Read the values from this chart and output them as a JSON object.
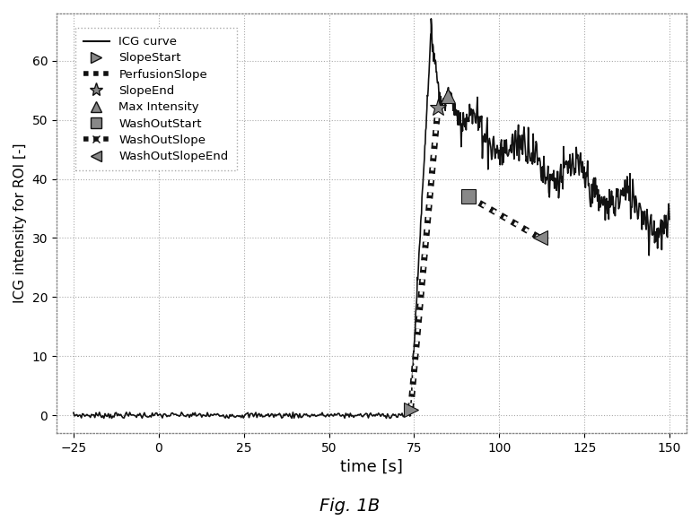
{
  "title": "Fig. 1B",
  "xlabel": "time [s]",
  "ylabel": "ICG intensity for ROI [-]",
  "xlim": [
    -30,
    155
  ],
  "ylim": [
    -3,
    68
  ],
  "xticks": [
    -25,
    0,
    25,
    50,
    75,
    100,
    125,
    150
  ],
  "yticks": [
    0,
    10,
    20,
    30,
    40,
    50,
    60
  ],
  "bg_color": "#ffffff",
  "line_color": "#111111",
  "slope_start_x": 74,
  "slope_start_y": 1,
  "slope_end_x": 82,
  "slope_end_y": 52,
  "max_intensity_x": 85,
  "max_intensity_y": 54,
  "washout_start_x": 91,
  "washout_start_y": 37,
  "washout_slope_end_x": 112,
  "washout_slope_end_y": 30,
  "legend_labels": [
    "ICG curve",
    "SlopeStart",
    "PerfusionSlope",
    "SlopeEnd",
    "Max Intensity",
    "WashOutStart",
    "WashOutSlope",
    "WashOutSlopeEnd"
  ]
}
